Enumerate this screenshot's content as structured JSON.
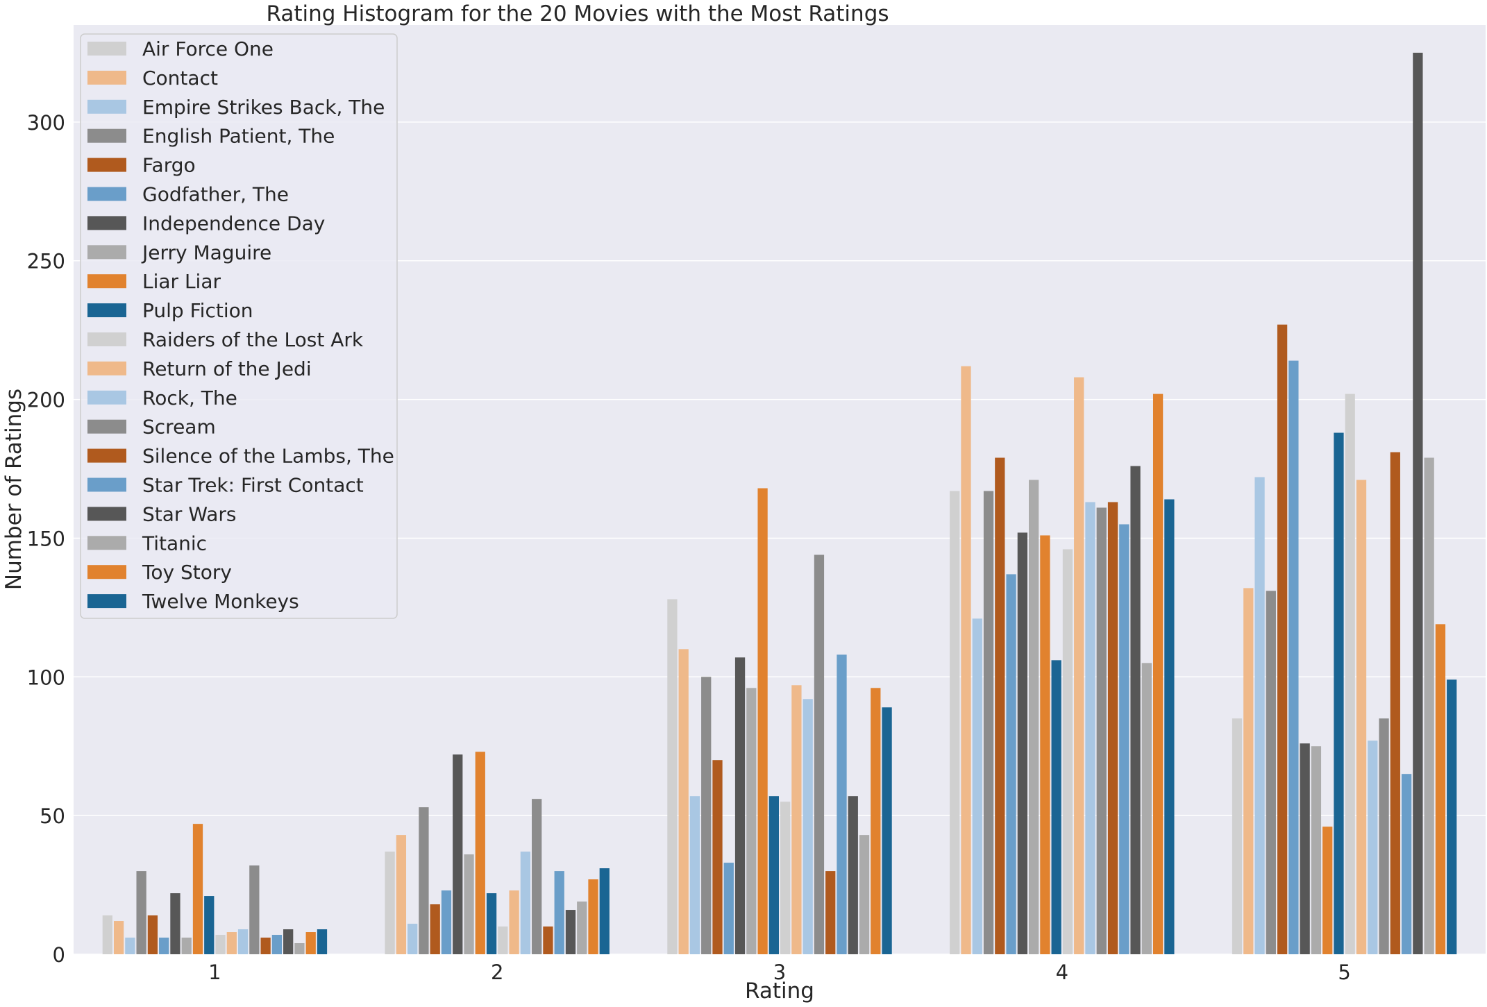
{
  "chart_data": {
    "type": "bar",
    "title": "Rating Histogram for the 20 Movies with the Most Ratings",
    "xlabel": "Rating",
    "ylabel": "Number of Ratings",
    "categories": [
      "1",
      "2",
      "3",
      "4",
      "5"
    ],
    "ylim": [
      0,
      335
    ],
    "yticks": [
      0,
      50,
      100,
      150,
      200,
      250,
      300
    ],
    "grid": true,
    "legend_position": "top-left",
    "series": [
      {
        "name": "Air Force One",
        "color": "#d0d0d0",
        "values": [
          14,
          37,
          128,
          167,
          85
        ]
      },
      {
        "name": "Contact",
        "color": "#efb98a",
        "values": [
          12,
          43,
          110,
          212,
          132
        ]
      },
      {
        "name": "Empire Strikes Back, The",
        "color": "#a9c7e3",
        "values": [
          6,
          11,
          57,
          121,
          172
        ]
      },
      {
        "name": "English Patient, The",
        "color": "#8c8c8c",
        "values": [
          30,
          53,
          100,
          167,
          131
        ]
      },
      {
        "name": "Fargo",
        "color": "#b05a1e",
        "values": [
          14,
          18,
          70,
          179,
          227
        ]
      },
      {
        "name": "Godfather, The",
        "color": "#6a9ec9",
        "values": [
          6,
          23,
          33,
          137,
          214
        ]
      },
      {
        "name": "Independence Day",
        "color": "#575757",
        "values": [
          22,
          72,
          107,
          152,
          76
        ]
      },
      {
        "name": "Jerry Maguire",
        "color": "#ababab",
        "values": [
          6,
          36,
          96,
          171,
          75
        ]
      },
      {
        "name": "Liar Liar",
        "color": "#e1822e",
        "values": [
          47,
          73,
          168,
          151,
          46
        ]
      },
      {
        "name": "Pulp Fiction",
        "color": "#1a6593",
        "values": [
          21,
          22,
          57,
          106,
          188
        ]
      },
      {
        "name": "Raiders of the Lost Ark",
        "color": "#d0d0d0",
        "values": [
          7,
          10,
          55,
          146,
          202
        ]
      },
      {
        "name": "Return of the Jedi",
        "color": "#efb98a",
        "values": [
          8,
          23,
          97,
          208,
          171
        ]
      },
      {
        "name": "Rock, The",
        "color": "#a9c7e3",
        "values": [
          9,
          37,
          92,
          163,
          77
        ]
      },
      {
        "name": "Scream",
        "color": "#8c8c8c",
        "values": [
          32,
          56,
          144,
          161,
          85
        ]
      },
      {
        "name": "Silence of the Lambs, The",
        "color": "#b05a1e",
        "values": [
          6,
          10,
          30,
          163,
          181
        ]
      },
      {
        "name": "Star Trek: First Contact",
        "color": "#6a9ec9",
        "values": [
          7,
          30,
          108,
          155,
          65
        ]
      },
      {
        "name": "Star Wars",
        "color": "#575757",
        "values": [
          9,
          16,
          57,
          176,
          325
        ]
      },
      {
        "name": "Titanic",
        "color": "#ababab",
        "values": [
          4,
          19,
          43,
          105,
          179
        ]
      },
      {
        "name": "Toy Story",
        "color": "#e1822e",
        "values": [
          8,
          27,
          96,
          202,
          119
        ]
      },
      {
        "name": "Twelve Monkeys",
        "color": "#1a6593",
        "values": [
          9,
          31,
          89,
          164,
          99
        ]
      }
    ]
  }
}
